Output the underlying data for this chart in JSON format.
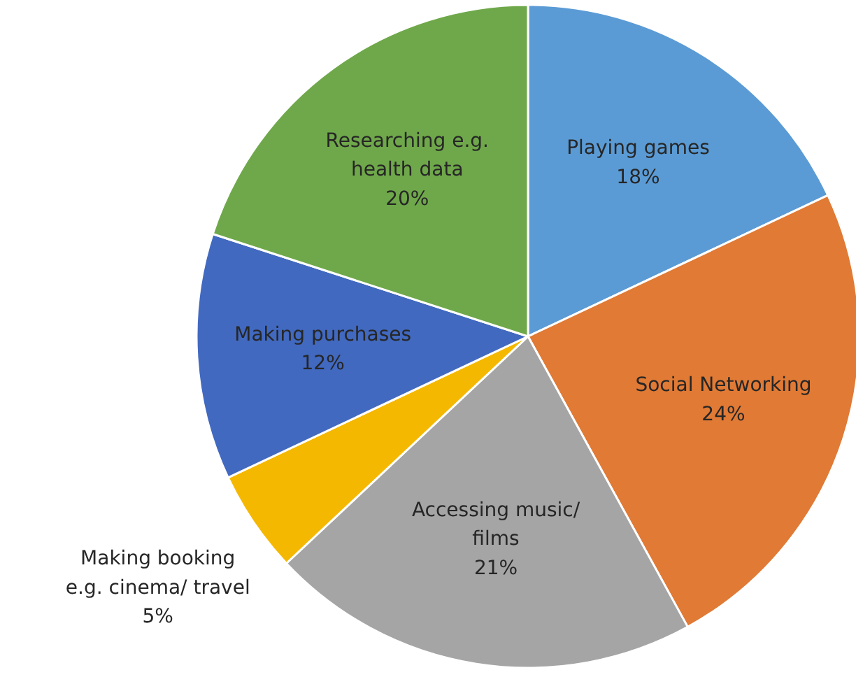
{
  "chart_data": {
    "type": "pie",
    "categories": [
      "Playing games",
      "Social Networking",
      "Accessing music/\nfilms",
      "Making booking\ne.g. cinema/ travel",
      "Making purchases",
      "Researching e.g.\nhealth data"
    ],
    "values": [
      18,
      24,
      21,
      5,
      12,
      20
    ],
    "value_labels": [
      "18%",
      "24%",
      "21%",
      "5%",
      "12%",
      "20%"
    ],
    "colors": [
      "#5b9bd5",
      "#e07a35",
      "#a5a5a5",
      "#f5b800",
      "#4169c0",
      "#6fa84a"
    ]
  }
}
